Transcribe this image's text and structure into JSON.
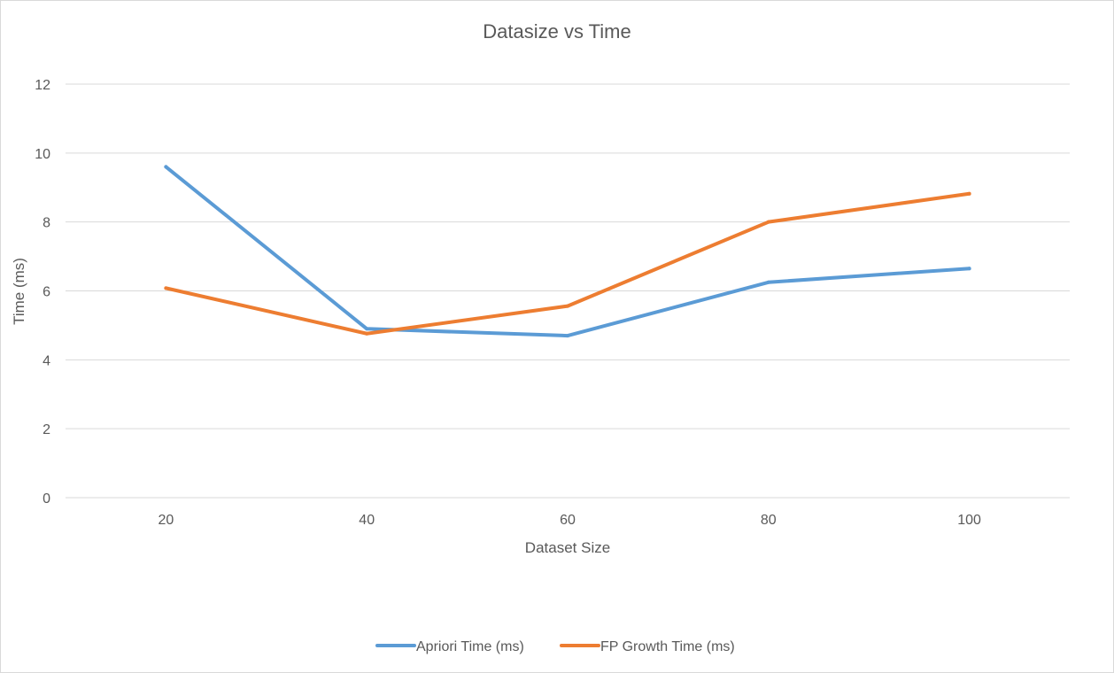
{
  "chart_data": {
    "type": "line",
    "title": "Datasize vs Time",
    "xlabel": "Dataset Size",
    "ylabel": "Time (ms)",
    "categories": [
      "20",
      "40",
      "60",
      "80",
      "100"
    ],
    "ylim": [
      0,
      12
    ],
    "yticks": [
      "0",
      "2",
      "4",
      "6",
      "8",
      "10",
      "12"
    ],
    "grid": true,
    "legend_position": "bottom",
    "series": [
      {
        "name": "Apriori Time (ms)",
        "color": "#5b9bd5",
        "values": [
          9.6,
          4.9,
          4.7,
          6.25,
          6.65
        ]
      },
      {
        "name": "FP Growth Time (ms)",
        "color": "#ed7d31",
        "values": [
          6.08,
          4.76,
          5.56,
          8.0,
          8.82
        ]
      }
    ]
  }
}
